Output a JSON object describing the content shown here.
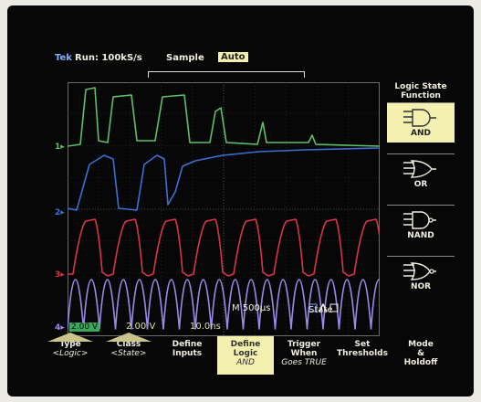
{
  "topbar": {
    "brand": "Tek",
    "run_label": "Run: 100kS/s",
    "acq_mode": "Sample",
    "trigger_mode": "Auto"
  },
  "channels": [
    {
      "label": "1",
      "color": "#5fbf6a"
    },
    {
      "label": "2",
      "color": "#3d6fd4"
    },
    {
      "label": "3",
      "color": "#d8354a"
    },
    {
      "label": "4",
      "color": "#9b8ae6"
    }
  ],
  "readouts": {
    "ch1_scale": "2.00 V",
    "ch2_scale": "2.00 V",
    "ch3_scale": "10.0ns",
    "timebase": "M 500µs",
    "state_label": "State"
  },
  "side_menu": {
    "title_line1": "Logic State",
    "title_line2": "Function",
    "items": [
      {
        "label": "AND",
        "selected": true
      },
      {
        "label": "OR",
        "selected": false
      },
      {
        "label": "NAND",
        "selected": false
      },
      {
        "label": "NOR",
        "selected": false
      }
    ]
  },
  "bottom_menu": [
    {
      "line1": "Type",
      "line2": "<Logic>",
      "selected": false,
      "has_triangle": true
    },
    {
      "line1": "Class",
      "line2": "<State>",
      "selected": false,
      "has_triangle": true
    },
    {
      "line1": "Define",
      "line2": "Inputs",
      "selected": false,
      "has_triangle": false
    },
    {
      "line1": "Define",
      "line2": "Logic",
      "line3": "AND",
      "selected": true,
      "has_triangle": false
    },
    {
      "line1": "Trigger",
      "line2": "When",
      "line3": "Goes TRUE",
      "selected": false,
      "has_triangle": false
    },
    {
      "line1": "Set",
      "line2": "Thresholds",
      "selected": false,
      "has_triangle": false
    },
    {
      "line1": "Mode",
      "line2": "&",
      "line3": "Holdoff",
      "selected": false,
      "has_triangle": false
    }
  ],
  "colors": {
    "screen_bg": "#070707",
    "highlight": "#f3f0b0",
    "grid": "#3a3a3a"
  }
}
